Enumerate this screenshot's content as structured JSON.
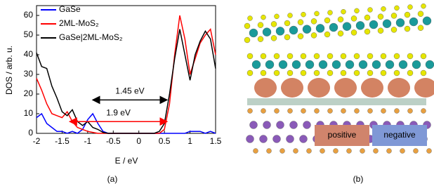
{
  "chart_data": {
    "type": "line",
    "xlabel": "E / eV",
    "ylabel": "DOS / arb. u.",
    "caption": "(a)",
    "x": [
      -2,
      -1.9,
      -1.8,
      -1.7,
      -1.6,
      -1.5,
      -1.4,
      -1.3,
      -1.2,
      -1.1,
      -1,
      -0.9,
      -0.8,
      -0.7,
      -0.6,
      -0.5,
      -0.4,
      -0.3,
      -0.2,
      -0.1,
      0,
      0.1,
      0.2,
      0.3,
      0.4,
      0.5,
      0.6,
      0.7,
      0.8,
      0.9,
      1,
      1.1,
      1.2,
      1.3,
      1.4,
      1.5
    ],
    "series": [
      {
        "name": "GaSe",
        "color": "#0000ff",
        "values": [
          8,
          10,
          5,
          3,
          1,
          1,
          0,
          1,
          0,
          2,
          7,
          10,
          5,
          1,
          0,
          0,
          0,
          0,
          0,
          0,
          0,
          0,
          0,
          0,
          0,
          0,
          0,
          0,
          0,
          0,
          1,
          1,
          1,
          0,
          1,
          0
        ]
      },
      {
        "name": "2ML-MoS₂",
        "color": "#ff0000",
        "values": [
          28,
          22,
          15,
          10,
          9,
          8,
          11,
          6,
          3,
          2,
          1,
          0.5,
          0,
          0,
          0,
          0,
          0,
          0,
          0,
          0,
          0,
          0,
          0,
          0,
          0,
          2,
          15,
          40,
          60,
          48,
          30,
          38,
          46,
          50,
          53,
          40
        ]
      },
      {
        "name": "GaSe|2ML-MoS₂",
        "color": "#000000",
        "values": [
          41,
          34,
          33,
          24,
          18,
          11,
          9,
          12,
          6,
          4,
          6,
          3,
          2,
          0.5,
          0,
          0,
          0,
          0,
          0,
          0,
          0,
          0,
          0,
          0,
          1,
          5,
          20,
          38,
          53,
          40,
          27,
          40,
          47,
          52,
          48,
          33
        ]
      }
    ],
    "xlim": [
      -2,
      1.5
    ],
    "xticks": [
      -2,
      -1.5,
      -1,
      -0.5,
      0,
      0.5,
      1,
      1.5
    ],
    "ylim": [
      0,
      65
    ],
    "yticks": [
      0,
      10,
      20,
      30,
      40,
      50,
      60
    ],
    "annotations": [
      {
        "text": "1.45 eV",
        "color": "#000000",
        "x": [
          -0.9,
          0.55
        ],
        "y": 17
      },
      {
        "text": "1.9 eV",
        "color": "#ff0000",
        "x": [
          -1.35,
          0.55
        ],
        "y": 6
      }
    ]
  },
  "figure_b": {
    "caption": "(b)",
    "legend": [
      {
        "text": "positive",
        "color": "#d0846c"
      },
      {
        "text": "negative",
        "color": "#7f98d6"
      }
    ]
  }
}
